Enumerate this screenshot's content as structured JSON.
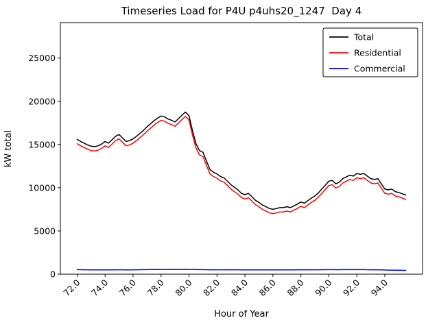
{
  "chart_data": {
    "type": "line",
    "title": "Timeseries Load for P4U p4uhs20_1247  Day 4",
    "xlabel": "Hour of Year",
    "ylabel": "kW total",
    "xlim": [
      70.8,
      96.7
    ],
    "ylim": [
      0,
      29100
    ],
    "grid": false,
    "legend_position": "upper right",
    "xticks": [
      72,
      74,
      76,
      78,
      80,
      82,
      84,
      86,
      88,
      90,
      92,
      94
    ],
    "xtick_labels": [
      "72.0",
      "74.0",
      "76.0",
      "78.0",
      "80.0",
      "82.0",
      "84.0",
      "86.0",
      "88.0",
      "90.0",
      "92.0",
      "94.0"
    ],
    "yticks": [
      0,
      5000,
      10000,
      15000,
      20000,
      25000
    ],
    "ytick_labels": [
      "0",
      "5000",
      "10000",
      "15000",
      "20000",
      "25000"
    ],
    "x": [
      72,
      72.25,
      72.5,
      72.75,
      73,
      73.25,
      73.5,
      73.75,
      74,
      74.25,
      74.5,
      74.75,
      75,
      75.25,
      75.5,
      75.75,
      76,
      76.25,
      76.5,
      76.75,
      77,
      77.25,
      77.5,
      77.75,
      78,
      78.25,
      78.5,
      78.75,
      79,
      79.25,
      79.5,
      79.75,
      80,
      80.25,
      80.5,
      80.75,
      81,
      81.25,
      81.5,
      81.75,
      82,
      82.25,
      82.5,
      82.75,
      83,
      83.25,
      83.5,
      83.75,
      84,
      84.25,
      84.5,
      84.75,
      85,
      85.25,
      85.5,
      85.75,
      86,
      86.25,
      86.5,
      86.75,
      87,
      87.25,
      87.5,
      87.75,
      88,
      88.25,
      88.5,
      88.75,
      89,
      89.25,
      89.5,
      89.75,
      90,
      90.25,
      90.5,
      90.75,
      91,
      91.25,
      91.5,
      91.75,
      92,
      92.25,
      92.5,
      92.75,
      93,
      93.25,
      93.5,
      93.75,
      94,
      94.25,
      94.5,
      94.75,
      95,
      95.25,
      95.5
    ],
    "series": [
      {
        "name": "Total",
        "color": "#000000",
        "values": [
          15600,
          15350,
          15150,
          14950,
          14800,
          14750,
          14850,
          15050,
          15350,
          15150,
          15550,
          15950,
          16150,
          15750,
          15350,
          15450,
          15650,
          15950,
          16300,
          16650,
          17050,
          17400,
          17750,
          18050,
          18300,
          18200,
          17950,
          17800,
          17600,
          18000,
          18400,
          18750,
          18300,
          16600,
          15100,
          14300,
          14100,
          13100,
          12100,
          11800,
          11600,
          11300,
          11150,
          10750,
          10350,
          10050,
          9750,
          9350,
          9200,
          9350,
          8950,
          8550,
          8300,
          8000,
          7800,
          7600,
          7500,
          7600,
          7700,
          7700,
          7800,
          7700,
          7900,
          8100,
          8350,
          8200,
          8500,
          8800,
          9050,
          9400,
          9850,
          10300,
          10750,
          10850,
          10450,
          10650,
          11050,
          11250,
          11450,
          11350,
          11650,
          11550,
          11650,
          11350,
          11050,
          10950,
          11050,
          10450,
          9850,
          9750,
          9850,
          9550,
          9450,
          9300,
          9150
        ]
      },
      {
        "name": "Residential",
        "color": "#ff0000",
        "values": [
          15100,
          14850,
          14650,
          14450,
          14300,
          14250,
          14350,
          14550,
          14850,
          14650,
          15050,
          15450,
          15650,
          15250,
          14850,
          14950,
          15150,
          15450,
          15800,
          16150,
          16550,
          16900,
          17250,
          17550,
          17800,
          17700,
          17450,
          17300,
          17100,
          17500,
          17900,
          18250,
          17800,
          16100,
          14600,
          13800,
          13600,
          12600,
          11600,
          11300,
          11100,
          10800,
          10650,
          10250,
          9850,
          9550,
          9250,
          8850,
          8700,
          8850,
          8450,
          8050,
          7800,
          7500,
          7300,
          7100,
          7000,
          7100,
          7200,
          7200,
          7300,
          7200,
          7400,
          7600,
          7850,
          7700,
          8000,
          8300,
          8550,
          8900,
          9350,
          9800,
          10250,
          10350,
          9950,
          10150,
          10550,
          10750,
          10950,
          10850,
          11150,
          11050,
          11150,
          10850,
          10550,
          10450,
          10550,
          9950,
          9350,
          9250,
          9350,
          9050,
          8950,
          8800,
          8650
        ]
      },
      {
        "name": "Commercial",
        "color": "#0000ff",
        "values": [
          520,
          515,
          510,
          505,
          500,
          495,
          495,
          500,
          500,
          495,
          500,
          505,
          510,
          505,
          500,
          500,
          505,
          510,
          515,
          520,
          525,
          530,
          535,
          540,
          545,
          545,
          540,
          540,
          540,
          545,
          550,
          555,
          550,
          540,
          530,
          525,
          520,
          515,
          510,
          510,
          510,
          510,
          510,
          510,
          505,
          505,
          505,
          500,
          500,
          500,
          500,
          500,
          500,
          500,
          500,
          500,
          500,
          500,
          500,
          500,
          500,
          500,
          500,
          505,
          505,
          505,
          505,
          505,
          510,
          510,
          515,
          515,
          520,
          520,
          515,
          515,
          520,
          520,
          525,
          520,
          525,
          520,
          520,
          515,
          510,
          505,
          505,
          495,
          480,
          470,
          465,
          455,
          450,
          445,
          440
        ]
      }
    ]
  }
}
